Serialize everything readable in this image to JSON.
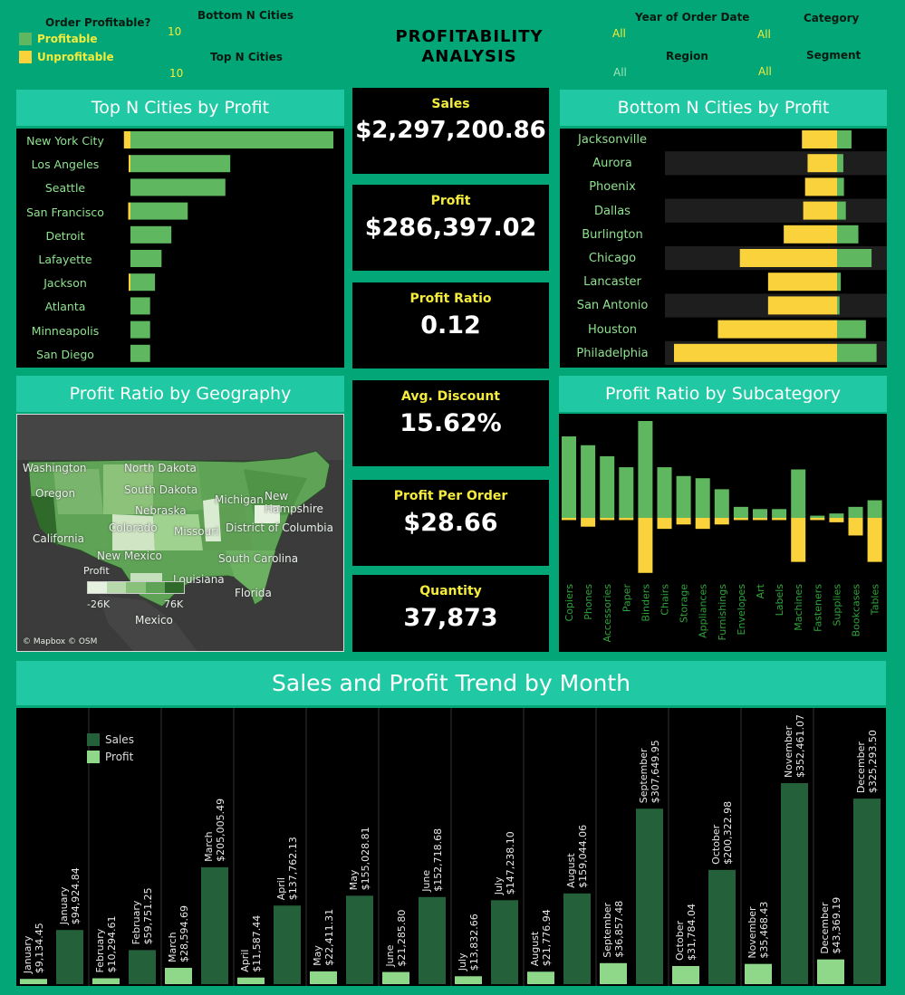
{
  "filters": {
    "order_profitable_title": "Order Profitable?",
    "profitable_label": "Profitable",
    "unprofitable_label": "Unprofitable",
    "bottom_n_title": "Bottom N Cities",
    "bottom_n_value": "10",
    "top_n_title": "Top N Cities",
    "top_n_value": "10",
    "year_title": "Year of Order Date",
    "year_value": "All",
    "category_title": "Category",
    "category_value": "All",
    "region_title": "Region",
    "region_value": "All",
    "segment_title": "Segment",
    "segment_value": "All"
  },
  "colors": {
    "profitable": "#5fb85f",
    "unprofitable": "#f9d23c",
    "sales": "#24603a",
    "profit": "#8fd88a"
  },
  "header": {
    "title_line1": "PROFITABILITY",
    "title_line2": "ANALYSIS"
  },
  "kpis": {
    "sales_label": "Sales",
    "sales_value": "$2,297,200.86",
    "profit_label": "Profit",
    "profit_value": "$286,397.02",
    "ratio_label": "Profit Ratio",
    "ratio_value": "0.12",
    "discount_label": "Avg. Discount",
    "discount_value": "15.62%",
    "ppo_label": "Profit Per Order",
    "ppo_value": "$28.66",
    "qty_label": "Quantity",
    "qty_value": "37,873"
  },
  "panels": {
    "top_title": "Top N Cities by Profit",
    "bottom_title": "Bottom N Cities by Profit",
    "geo_title": "Profit Ratio by Geography",
    "subcat_title": "Profit Ratio by Subcategory",
    "trend_title": "Sales and Profit Trend by Month"
  },
  "map": {
    "labels": [
      "Washington",
      "North Dakota",
      "Oregon",
      "South Dakota",
      "Michigan",
      "New Hampshire",
      "Nebraska",
      "California",
      "Colorado",
      "Missouri",
      "District of Columbia",
      "New Mexico",
      "South Carolina",
      "Louisiana",
      "Florida",
      "Mexico"
    ],
    "legend_title": "Profit",
    "legend_min": "-26K",
    "legend_max": "76K",
    "attribution": "© Mapbox © OSM"
  },
  "chart_data": [
    {
      "type": "bar",
      "title": "Top N Cities by Profit",
      "categories": [
        "New York City",
        "Los Angeles",
        "Seattle",
        "San Francisco",
        "Detroit",
        "Lafayette",
        "Jackson",
        "Atlanta",
        "Minneapolis",
        "San Diego"
      ],
      "series": [
        {
          "name": "Profitable",
          "values": [
            62000,
            30500,
            29000,
            17500,
            12500,
            9500,
            7500,
            6000,
            6000,
            6000
          ]
        },
        {
          "name": "Unprofitable",
          "values": [
            -2000,
            -500,
            0,
            -700,
            0,
            0,
            -200,
            0,
            0,
            0
          ]
        }
      ]
    },
    {
      "type": "bar",
      "title": "Bottom N Cities by Profit",
      "categories": [
        "Jacksonville",
        "Aurora",
        "Phoenix",
        "Dallas",
        "Burlington",
        "Chicago",
        "Lancaster",
        "San Antonio",
        "Houston",
        "Philadelphia"
      ],
      "series": [
        {
          "name": "Profitable",
          "values": [
            2300,
            1000,
            1100,
            1400,
            3400,
            5500,
            600,
            400,
            4600,
            6300
          ]
        },
        {
          "name": "Unprofitable",
          "values": [
            -5600,
            -4700,
            -5100,
            -5400,
            -8500,
            -15500,
            -11000,
            -11000,
            -19000,
            -26000
          ]
        }
      ]
    },
    {
      "type": "bar",
      "title": "Profit Ratio by Subcategory",
      "categories": [
        "Copiers",
        "Phones",
        "Accessories",
        "Paper",
        "Binders",
        "Chairs",
        "Storage",
        "Appliances",
        "Furnishings",
        "Envelopes",
        "Art",
        "Labels",
        "Machines",
        "Fasteners",
        "Supplies",
        "Bookcases",
        "Tables"
      ],
      "series": [
        {
          "name": "Profitable",
          "values": [
            0.37,
            0.33,
            0.28,
            0.23,
            0.44,
            0.23,
            0.19,
            0.18,
            0.13,
            0.05,
            0.04,
            0.04,
            0.22,
            0.01,
            0.02,
            0.05,
            0.08
          ]
        },
        {
          "name": "Unprofitable",
          "values": [
            -0.01,
            -0.04,
            -0.01,
            -0.01,
            -0.25,
            -0.05,
            -0.03,
            -0.05,
            -0.03,
            -0.01,
            -0.01,
            -0.01,
            -0.2,
            -0.01,
            -0.02,
            -0.08,
            -0.2
          ]
        }
      ]
    },
    {
      "type": "bar",
      "title": "Sales and Profit Trend by Month",
      "categories": [
        "January",
        "February",
        "March",
        "April",
        "May",
        "June",
        "July",
        "August",
        "September",
        "October",
        "November",
        "December"
      ],
      "series": [
        {
          "name": "Sales",
          "values": [
            94924.84,
            59751.25,
            205005.49,
            137762.13,
            155028.81,
            152718.68,
            147238.1,
            159044.06,
            307649.95,
            200322.98,
            352461.07,
            325293.5
          ],
          "labels": [
            "$94,924.84",
            "$59,751.25",
            "$205,005.49",
            "$137,762.13",
            "$155,028.81",
            "$152,718.68",
            "$147,238.10",
            "$159,044.06",
            "$307,649.95",
            "$200,322.98",
            "$352,461.07",
            "$325,293.50"
          ]
        },
        {
          "name": "Profit",
          "values": [
            9134.45,
            10294.61,
            28594.69,
            11587.44,
            22411.31,
            21285.8,
            13832.66,
            21776.94,
            36857.48,
            31784.04,
            35468.43,
            43369.19
          ],
          "labels": [
            "$9,134.45",
            "$10,294.61",
            "$28,594.69",
            "$11,587.44",
            "$22,411.31",
            "$21,285.80",
            "$13,832.66",
            "$21,776.94",
            "$36,857.48",
            "$31,784.04",
            "$35,468.43",
            "$43,369.19"
          ]
        }
      ]
    }
  ]
}
